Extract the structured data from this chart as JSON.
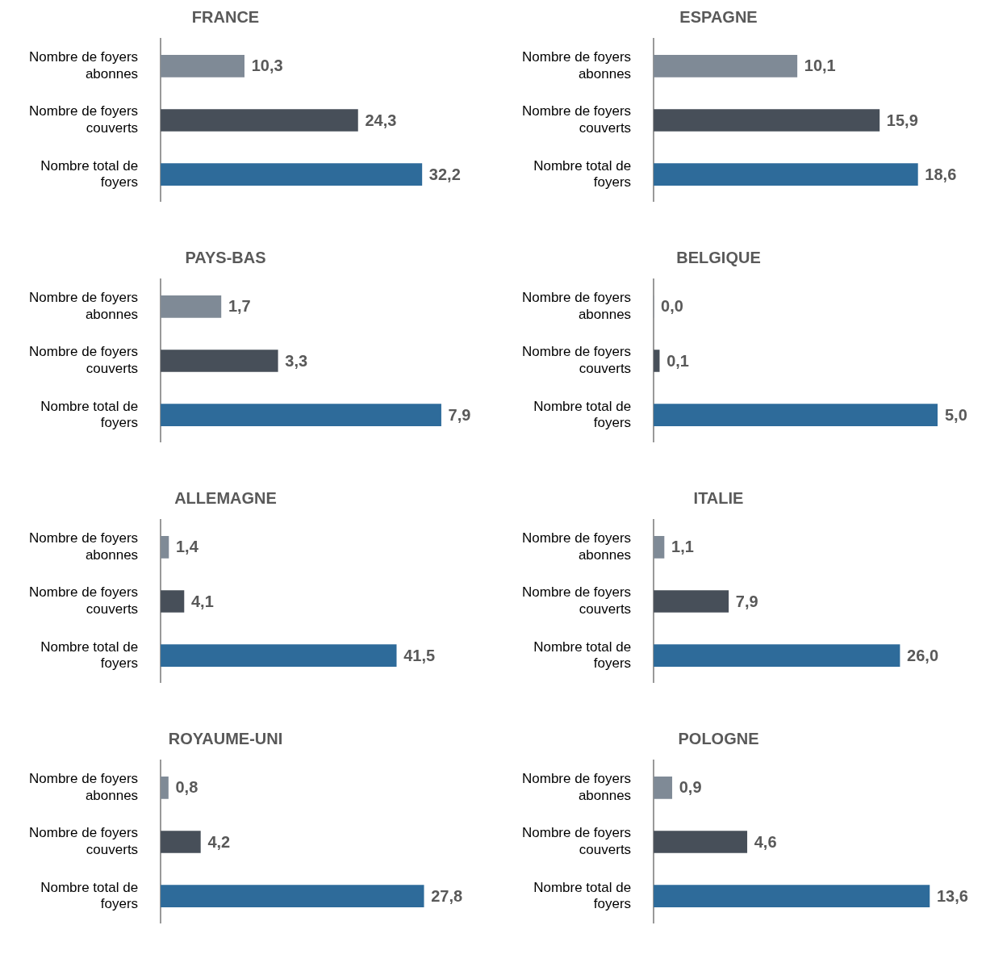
{
  "chart_data": [
    {
      "type": "bar",
      "orientation": "horizontal",
      "title": "FRANCE",
      "categories": [
        "Nombre de foyers abonnes",
        "Nombre de foyers couverts",
        "Nombre total de foyers"
      ],
      "values": [
        10.3,
        24.3,
        32.2
      ],
      "value_labels": [
        "10,3",
        "24,3",
        "32,2"
      ],
      "colors": [
        "#7f8a96",
        "#474f59",
        "#2e6b9a"
      ],
      "tick_labels": "y",
      "grid": false
    },
    {
      "type": "bar",
      "orientation": "horizontal",
      "title": "ESPAGNE",
      "categories": [
        "Nombre de foyers abonnes",
        "Nombre de foyers couverts",
        "Nombre total de foyers"
      ],
      "values": [
        10.1,
        15.9,
        18.6
      ],
      "value_labels": [
        "10,1",
        "15,9",
        "18,6"
      ],
      "colors": [
        "#7f8a96",
        "#474f59",
        "#2e6b9a"
      ],
      "tick_labels": "y",
      "grid": false
    },
    {
      "type": "bar",
      "orientation": "horizontal",
      "title": "PAYS-BAS",
      "categories": [
        "Nombre de foyers abonnes",
        "Nombre de foyers couverts",
        "Nombre total de foyers"
      ],
      "values": [
        1.7,
        3.3,
        7.9
      ],
      "value_labels": [
        "1,7",
        "3,3",
        "7,9"
      ],
      "colors": [
        "#7f8a96",
        "#474f59",
        "#2e6b9a"
      ],
      "tick_labels": "y",
      "grid": false
    },
    {
      "type": "bar",
      "orientation": "horizontal",
      "title": "BELGIQUE",
      "categories": [
        "Nombre de foyers abonnes",
        "Nombre de foyers couverts",
        "Nombre total de foyers"
      ],
      "values": [
        0.0,
        0.1,
        5.0
      ],
      "value_labels": [
        "0,0",
        "0,1",
        "5,0"
      ],
      "colors": [
        "#7f8a96",
        "#474f59",
        "#2e6b9a"
      ],
      "tick_labels": "y",
      "grid": false
    },
    {
      "type": "bar",
      "orientation": "horizontal",
      "title": "ALLEMAGNE",
      "categories": [
        "Nombre de foyers abonnes",
        "Nombre de foyers couverts",
        "Nombre total de foyers"
      ],
      "values": [
        1.4,
        4.1,
        41.5
      ],
      "value_labels": [
        "1,4",
        "4,1",
        "41,5"
      ],
      "colors": [
        "#7f8a96",
        "#474f59",
        "#2e6b9a"
      ],
      "tick_labels": "y",
      "grid": false
    },
    {
      "type": "bar",
      "orientation": "horizontal",
      "title": "ITALIE",
      "categories": [
        "Nombre de foyers abonnes",
        "Nombre de foyers couverts",
        "Nombre total de foyers"
      ],
      "values": [
        1.1,
        7.9,
        26.0
      ],
      "value_labels": [
        "1,1",
        "7,9",
        "26,0"
      ],
      "colors": [
        "#7f8a96",
        "#474f59",
        "#2e6b9a"
      ],
      "tick_labels": "y",
      "grid": false
    },
    {
      "type": "bar",
      "orientation": "horizontal",
      "title": "ROYAUME-UNI",
      "categories": [
        "Nombre de foyers abonnes",
        "Nombre de foyers couverts",
        "Nombre total de foyers"
      ],
      "values": [
        0.8,
        4.2,
        27.8
      ],
      "value_labels": [
        "0,8",
        "4,2",
        "27,8"
      ],
      "colors": [
        "#7f8a96",
        "#474f59",
        "#2e6b9a"
      ],
      "tick_labels": "y",
      "grid": false
    },
    {
      "type": "bar",
      "orientation": "horizontal",
      "title": "POLOGNE",
      "categories": [
        "Nombre de foyers abonnes",
        "Nombre de foyers couverts",
        "Nombre total de foyers"
      ],
      "values": [
        0.9,
        4.6,
        13.6
      ],
      "value_labels": [
        "0,9",
        "4,6",
        "13,6"
      ],
      "colors": [
        "#7f8a96",
        "#474f59",
        "#2e6b9a"
      ],
      "tick_labels": "y",
      "grid": false
    }
  ]
}
